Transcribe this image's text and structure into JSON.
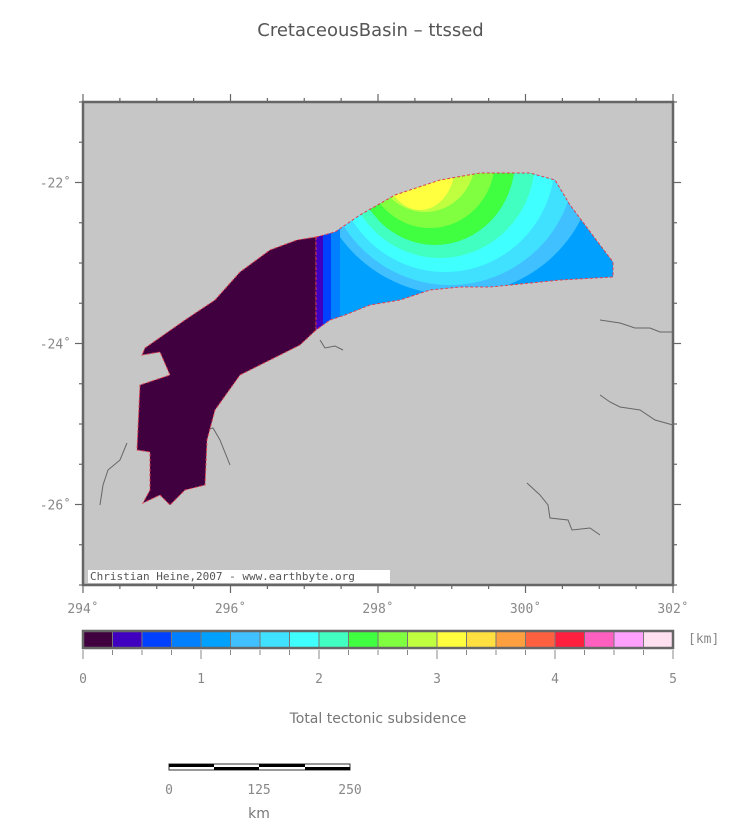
{
  "title": "CretaceousBasin – ttssed",
  "map": {
    "lon_range": [
      294,
      302
    ],
    "lat_range": [
      -27,
      -21
    ],
    "lon_labels": [
      "294˚",
      "296˚",
      "298˚",
      "300˚",
      "302˚"
    ],
    "lon_values": [
      294,
      296,
      298,
      300,
      302
    ],
    "lat_labels": [
      "-22˚",
      "-24˚",
      "-26˚"
    ],
    "lat_values": [
      -22,
      -24,
      -26
    ],
    "background_color": "#c6c6c6",
    "credit": "Christian Heine,2007 - www.earthbyte.org"
  },
  "colorbar": {
    "unit": "[km]",
    "tick_labels": [
      "0",
      "1",
      "2",
      "3",
      "4",
      "5"
    ],
    "range": [
      0,
      5
    ],
    "step": 0.25,
    "colors": [
      "#40003f",
      "#4000c0",
      "#0040ff",
      "#0080ff",
      "#00a0ff",
      "#40c0ff",
      "#40e0ff",
      "#40ffff",
      "#40ffc0",
      "#40ff40",
      "#80ff40",
      "#c0ff40",
      "#ffff40",
      "#ffe040",
      "#ffa040",
      "#ff6040",
      "#ff2040",
      "#ff60c0",
      "#ffa0ff",
      "#ffe0f0"
    ],
    "label": "Total tectonic subsidence"
  },
  "scalebar": {
    "labels": [
      "0",
      "125",
      "250"
    ],
    "unit": "km"
  }
}
